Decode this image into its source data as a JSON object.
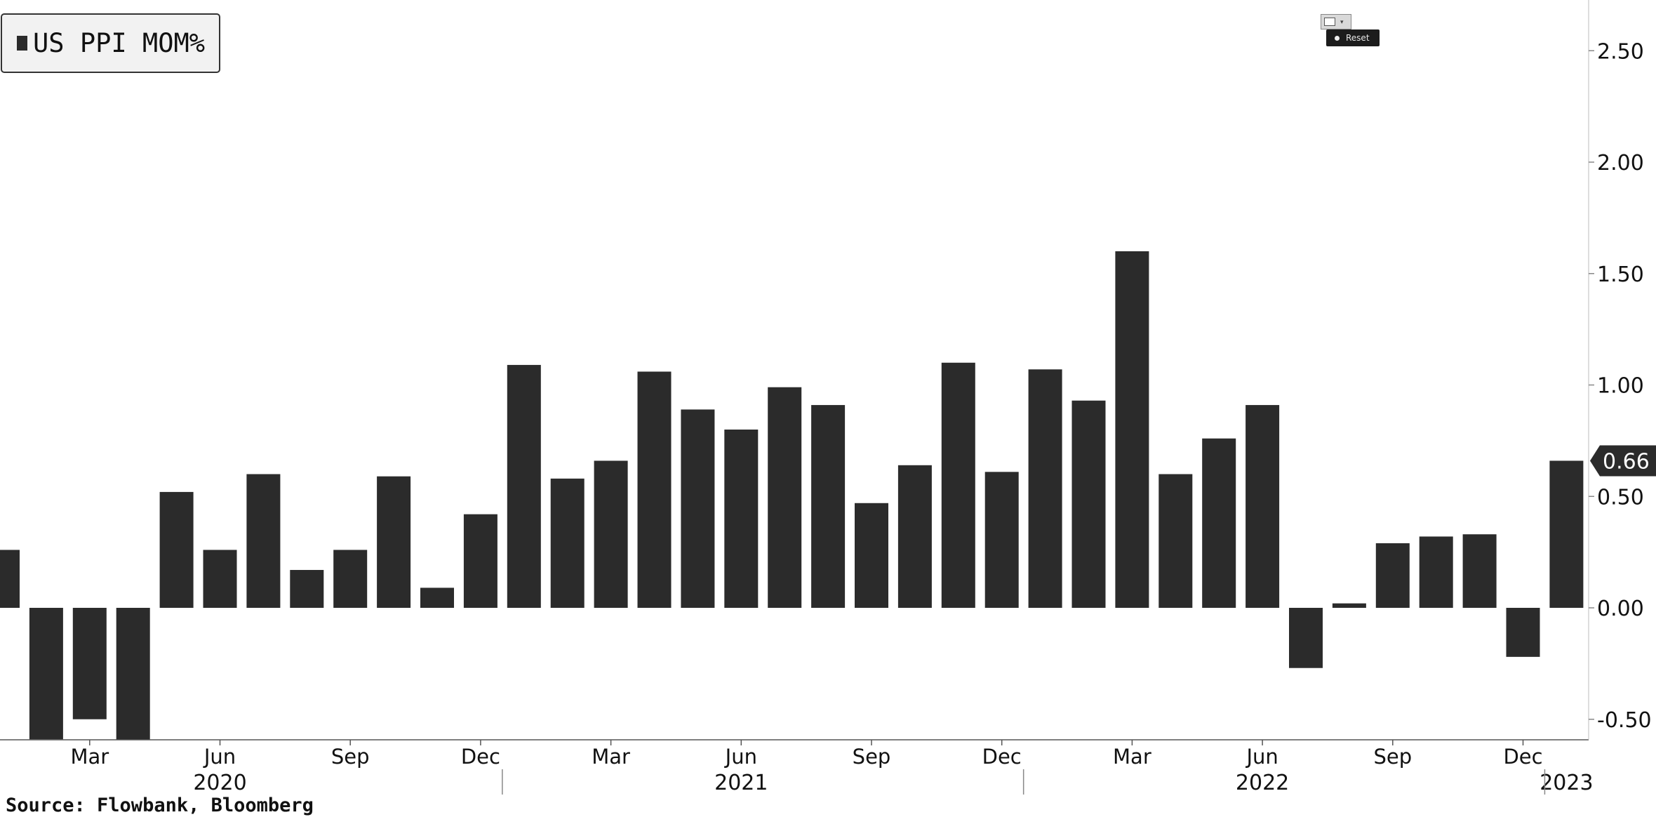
{
  "legend": {
    "label": "US PPI MOM%"
  },
  "toolbar": {
    "reset_label": "Reset"
  },
  "source": "Source: Flowbank, Bloomberg",
  "chart_data": {
    "type": "bar",
    "series": [
      {
        "name": "US PPI MOM%",
        "color": "#2b2b2b",
        "categories": [
          "2020-01",
          "2020-02",
          "2020-03",
          "2020-04",
          "2020-05",
          "2020-06",
          "2020-07",
          "2020-08",
          "2020-09",
          "2020-10",
          "2020-11",
          "2020-12",
          "2021-01",
          "2021-02",
          "2021-03",
          "2021-04",
          "2021-05",
          "2021-06",
          "2021-07",
          "2021-08",
          "2021-09",
          "2021-10",
          "2021-11",
          "2021-12",
          "2022-01",
          "2022-02",
          "2022-03",
          "2022-04",
          "2022-05",
          "2022-06",
          "2022-07",
          "2022-08",
          "2022-09",
          "2022-10",
          "2022-11",
          "2022-12",
          "2023-01"
        ],
        "values": [
          0.26,
          -0.59,
          -0.5,
          -0.6,
          0.52,
          0.26,
          0.6,
          0.17,
          0.26,
          0.59,
          0.09,
          0.42,
          1.09,
          0.58,
          0.66,
          1.06,
          0.89,
          0.8,
          0.99,
          0.91,
          0.47,
          0.64,
          1.1,
          0.61,
          1.07,
          0.93,
          1.6,
          0.6,
          0.76,
          0.91,
          -0.27,
          0.02,
          0.29,
          0.32,
          0.33,
          -0.22,
          0.66
        ]
      }
    ],
    "y_axis": {
      "position": "right",
      "ylim": [
        -0.6,
        2.7
      ],
      "ticks": [
        "2.50",
        "2.00",
        "1.50",
        "1.00",
        "0.50",
        "0.00",
        "-0.50"
      ]
    },
    "x_axis": {
      "month_labels": [
        {
          "date": "2020-03",
          "label": "Mar"
        },
        {
          "date": "2020-06",
          "label": "Jun"
        },
        {
          "date": "2020-09",
          "label": "Sep"
        },
        {
          "date": "2020-12",
          "label": "Dec"
        },
        {
          "date": "2021-03",
          "label": "Mar"
        },
        {
          "date": "2021-06",
          "label": "Jun"
        },
        {
          "date": "2021-09",
          "label": "Sep"
        },
        {
          "date": "2021-12",
          "label": "Dec"
        },
        {
          "date": "2022-03",
          "label": "Mar"
        },
        {
          "date": "2022-06",
          "label": "Jun"
        },
        {
          "date": "2022-09",
          "label": "Sep"
        },
        {
          "date": "2022-12",
          "label": "Dec"
        }
      ],
      "year_labels": [
        {
          "date": "2020-06",
          "label": "2020"
        },
        {
          "date": "2021-06",
          "label": "2021"
        },
        {
          "date": "2022-06",
          "label": "2022"
        },
        {
          "date": "2023-01",
          "label": "2023"
        }
      ],
      "year_dividers": [
        "2021-01",
        "2022-01",
        "2023-01"
      ]
    },
    "last_value_marker": {
      "value": 0.66,
      "label": "0.66"
    },
    "grid": false
  }
}
